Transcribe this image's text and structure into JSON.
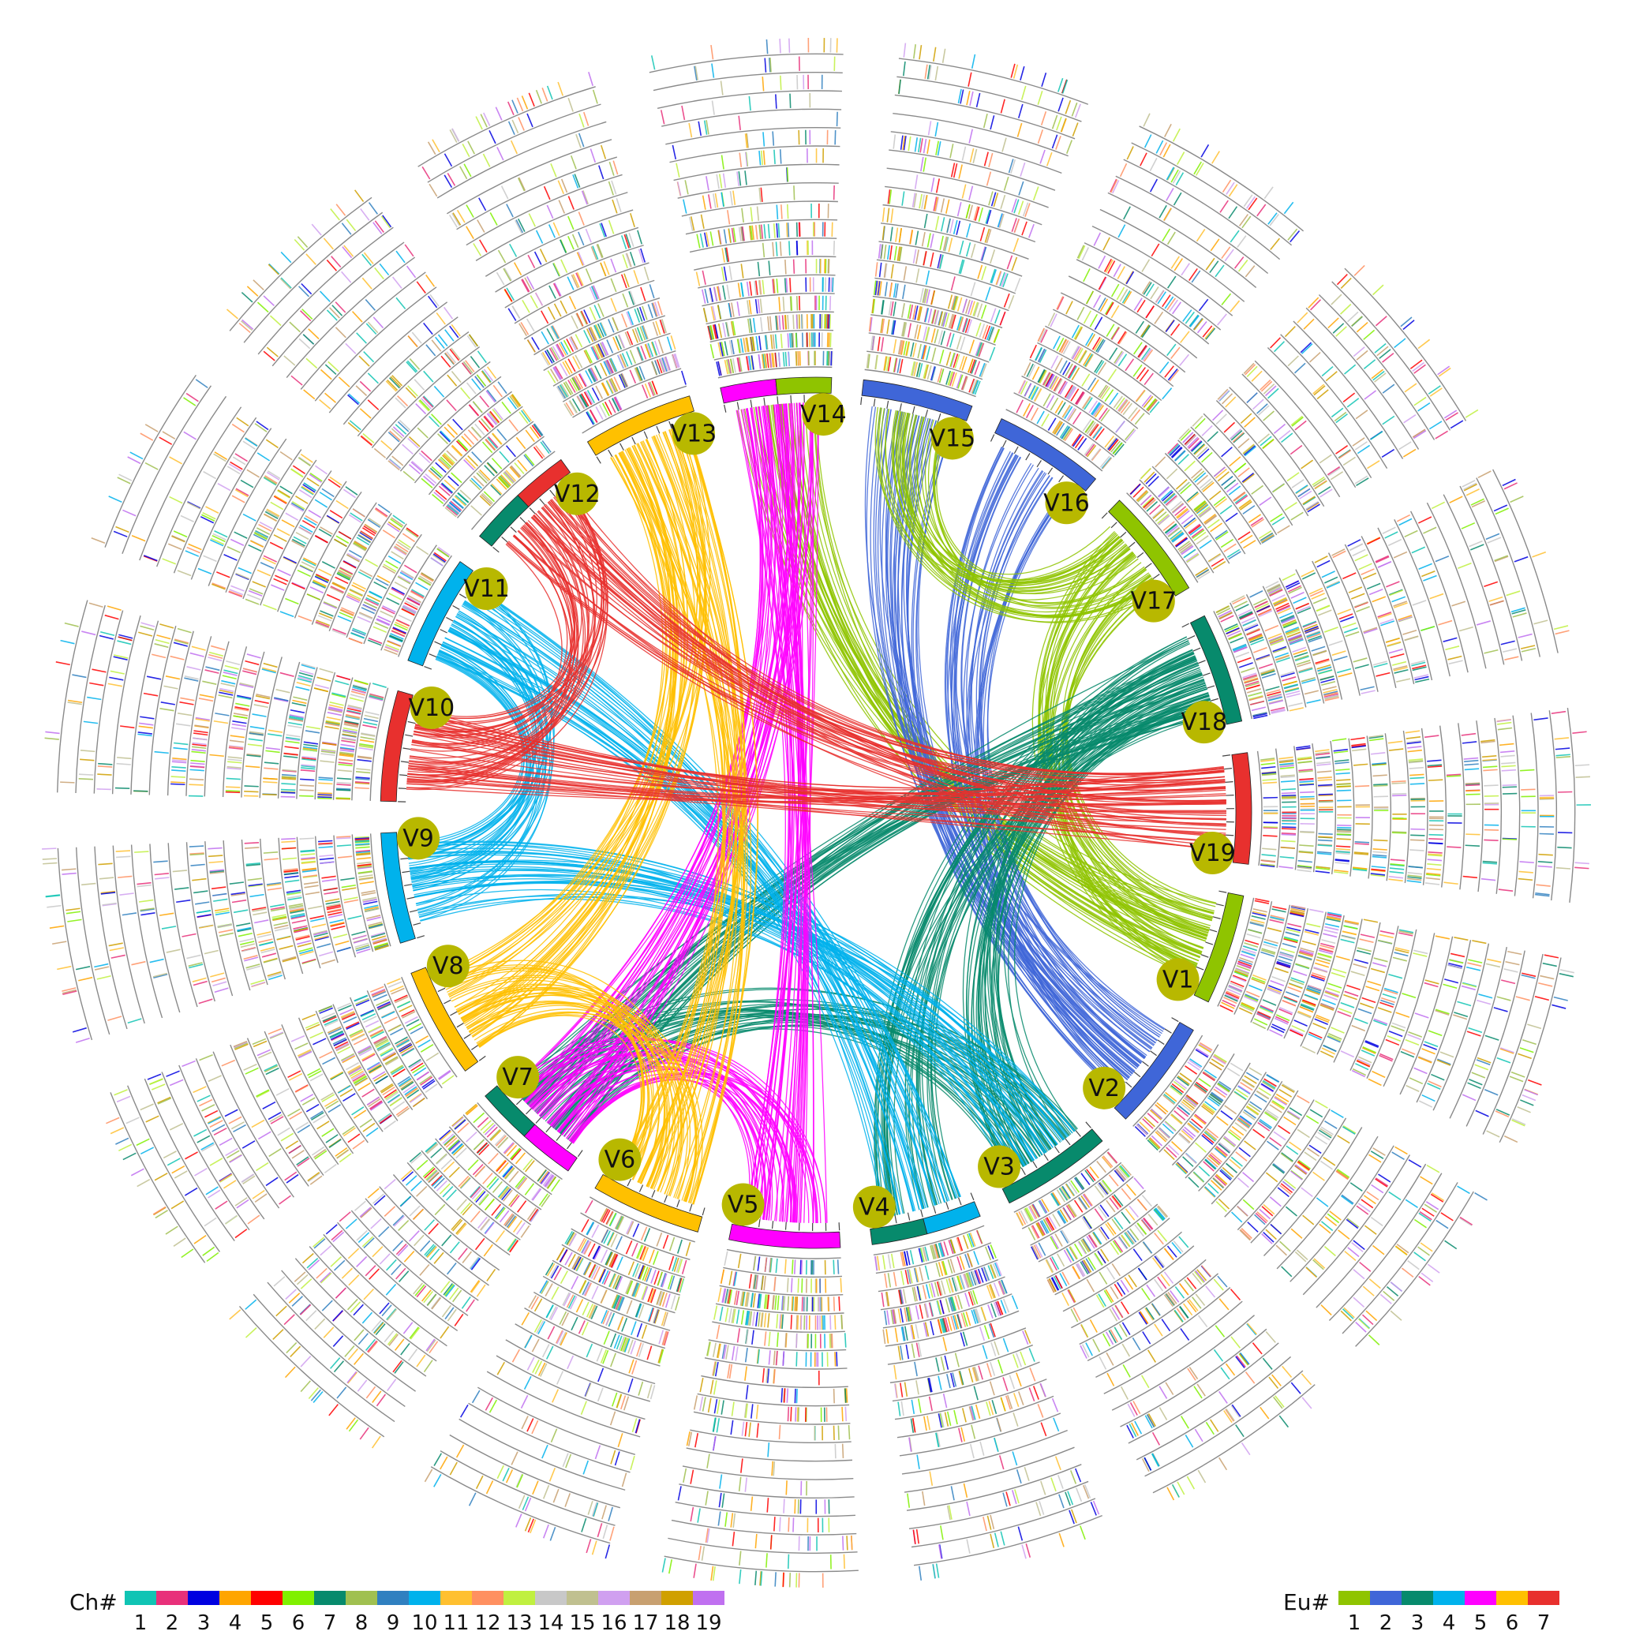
{
  "chromosomes": [
    {
      "label": "V1",
      "colors": [
        "#8fc400"
      ]
    },
    {
      "label": "V2",
      "colors": [
        "#3f66d8"
      ]
    },
    {
      "label": "V3",
      "colors": [
        "#078a6c"
      ]
    },
    {
      "label": "V4",
      "colors": [
        "#00b2ec",
        "#078a6c"
      ]
    },
    {
      "label": "V5",
      "colors": [
        "#ff00ff"
      ]
    },
    {
      "label": "V6",
      "colors": [
        "#ffc000"
      ]
    },
    {
      "label": "V7",
      "colors": [
        "#ff00ff",
        "#078a6c"
      ]
    },
    {
      "label": "V8",
      "colors": [
        "#ffc000"
      ]
    },
    {
      "label": "V9",
      "colors": [
        "#00b2ec"
      ]
    },
    {
      "label": "V10",
      "colors": [
        "#e8302e"
      ]
    },
    {
      "label": "V11",
      "colors": [
        "#00b2ec"
      ]
    },
    {
      "label": "V12",
      "colors": [
        "#078a6c",
        "#e8302e"
      ]
    },
    {
      "label": "V13",
      "colors": [
        "#ffc000"
      ]
    },
    {
      "label": "V14",
      "colors": [
        "#ff00ff",
        "#8fc400"
      ]
    },
    {
      "label": "V15",
      "colors": [
        "#3f66d8"
      ]
    },
    {
      "label": "V16",
      "colors": [
        "#3f66d8"
      ]
    },
    {
      "label": "V17",
      "colors": [
        "#8fc400"
      ]
    },
    {
      "label": "V18",
      "colors": [
        "#078a6c"
      ]
    },
    {
      "label": "V19",
      "colors": [
        "#e8302e"
      ]
    }
  ],
  "links": [
    {
      "from": "V1",
      "to": "V17",
      "color": "#8fc400"
    },
    {
      "from": "V1",
      "to": "V14",
      "color": "#8fc400"
    },
    {
      "from": "V2",
      "to": "V15",
      "color": "#3f66d8"
    },
    {
      "from": "V2",
      "to": "V16",
      "color": "#3f66d8"
    },
    {
      "from": "V3",
      "to": "V18",
      "color": "#078a6c"
    },
    {
      "from": "V4",
      "to": "V18",
      "color": "#078a6c"
    },
    {
      "from": "V7",
      "to": "V18",
      "color": "#078a6c"
    },
    {
      "from": "V3",
      "to": "V7",
      "color": "#078a6c"
    },
    {
      "from": "V4",
      "to": "V11",
      "color": "#00b2ec"
    },
    {
      "from": "V9",
      "to": "V11",
      "color": "#00b2ec"
    },
    {
      "from": "V9",
      "to": "V3",
      "color": "#00b2ec"
    },
    {
      "from": "V5",
      "to": "V14",
      "color": "#ff00ff"
    },
    {
      "from": "V7",
      "to": "V14",
      "color": "#ff00ff"
    },
    {
      "from": "V5",
      "to": "V7",
      "color": "#ff00ff"
    },
    {
      "from": "V6",
      "to": "V13",
      "color": "#ffc000"
    },
    {
      "from": "V8",
      "to": "V13",
      "color": "#ffc000"
    },
    {
      "from": "V8",
      "to": "V6",
      "color": "#ffc000"
    },
    {
      "from": "V10",
      "to": "V19",
      "color": "#e8302e"
    },
    {
      "from": "V12",
      "to": "V19",
      "color": "#e8302e"
    },
    {
      "from": "V10",
      "to": "V12",
      "color": "#e8302e"
    },
    {
      "from": "V17",
      "to": "V15",
      "color": "#8fc400"
    }
  ],
  "legend_ch": {
    "title": "Ch#",
    "labels": [
      "1",
      "2",
      "3",
      "4",
      "5",
      "6",
      "7",
      "8",
      "9",
      "10",
      "11",
      "12",
      "13",
      "14",
      "15",
      "16",
      "17",
      "18",
      "19"
    ],
    "colors": [
      "#10c4b4",
      "#e8307a",
      "#0000e0",
      "#ffa500",
      "#ff0000",
      "#80f000",
      "#078a6c",
      "#a0c050",
      "#3080c0",
      "#00b2ec",
      "#ffc030",
      "#ff9060",
      "#c0f040",
      "#c8c8c8",
      "#c0c090",
      "#d0a0f0",
      "#c8a070",
      "#d0a000",
      "#c070f0"
    ]
  },
  "legend_eu": {
    "title": "Eu#",
    "labels": [
      "1",
      "2",
      "3",
      "4",
      "5",
      "6",
      "7"
    ],
    "colors": [
      "#8fc400",
      "#3f66d8",
      "#078a6c",
      "#00b2ec",
      "#ff00ff",
      "#ffc000",
      "#e8302e"
    ]
  }
}
